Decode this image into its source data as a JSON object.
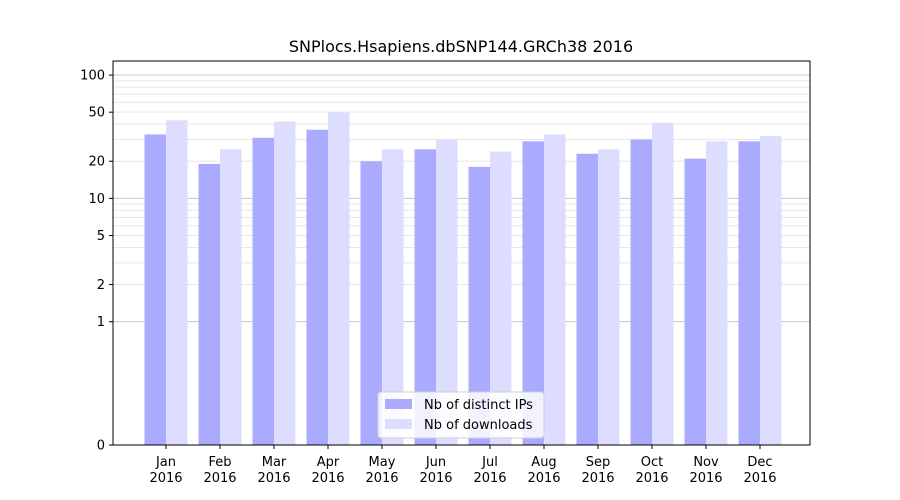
{
  "chart_data": {
    "type": "bar",
    "title": "SNPlocs.Hsapiens.dbSNP144.GRCh38 2016",
    "xlabel": "",
    "ylabel": "",
    "y_scale": "symlog",
    "ylim": [
      0,
      130
    ],
    "yticks": [
      0,
      1,
      2,
      5,
      10,
      20,
      50,
      100
    ],
    "ytick_labels": [
      "0",
      "1",
      "2",
      "5",
      "10",
      "20",
      "50",
      "100"
    ],
    "categories": [
      [
        "Jan",
        "2016"
      ],
      [
        "Feb",
        "2016"
      ],
      [
        "Mar",
        "2016"
      ],
      [
        "Apr",
        "2016"
      ],
      [
        "May",
        "2016"
      ],
      [
        "Jun",
        "2016"
      ],
      [
        "Jul",
        "2016"
      ],
      [
        "Aug",
        "2016"
      ],
      [
        "Sep",
        "2016"
      ],
      [
        "Oct",
        "2016"
      ],
      [
        "Nov",
        "2016"
      ],
      [
        "Dec",
        "2016"
      ]
    ],
    "series": [
      {
        "name": "Nb of distinct IPs",
        "color": "#aaaaff",
        "values": [
          33,
          19,
          31,
          36,
          20,
          25,
          18,
          29,
          23,
          30,
          21,
          29
        ]
      },
      {
        "name": "Nb of downloads",
        "color": "#ddddff",
        "values": [
          43,
          25,
          42,
          50,
          25,
          30,
          24,
          33,
          25,
          41,
          29,
          32
        ]
      }
    ],
    "grid": true,
    "legend_position": "bottom-center"
  }
}
